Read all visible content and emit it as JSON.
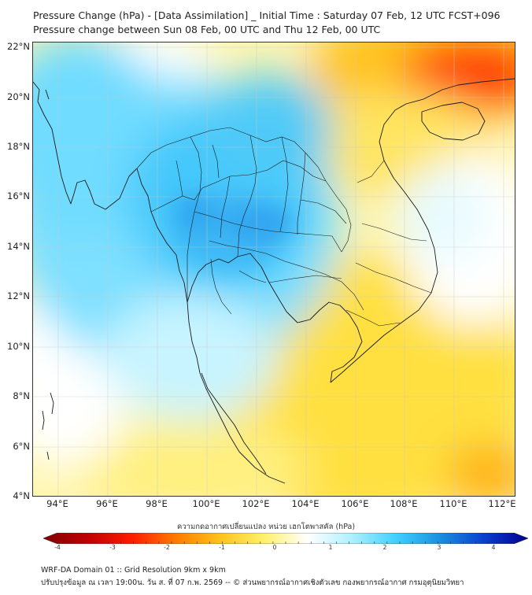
{
  "header": {
    "title_line1": "Pressure Change (hPa) - [Data Assimilation] _ Initial Time : Saturday 07 Feb, 12 UTC FCST+096",
    "title_line2": "Pressure change between Sun 08 Feb, 00 UTC and Thu 12 Feb, 00 UTC"
  },
  "map": {
    "lat_labels": [
      "22°N",
      "20°N",
      "18°N",
      "16°N",
      "14°N",
      "12°N",
      "10°N",
      "8°N",
      "6°N",
      "4°N"
    ],
    "lon_labels": [
      "94°E",
      "96°E",
      "98°E",
      "100°E",
      "102°E",
      "104°E",
      "106°E",
      "108°E",
      "110°E",
      "112°E"
    ],
    "colors": {
      "land_outline": "#1a1a1a",
      "grid": "#bfbfbf",
      "strong_rise": "#1e88e5",
      "rise": "#4fc3f7",
      "neutral": "#ffffff",
      "fall": "#ffe34d",
      "strong_fall": "#e53935"
    }
  },
  "colorbar": {
    "title": "ความกดอากาศเปลี่ยนแปลง หน่วย เฮกโตพาสคัล (hPa)",
    "ticks": [
      "-4",
      "-3",
      "-2",
      "-1",
      "0",
      "1",
      "2",
      "3",
      "4"
    ],
    "min": -4.5,
    "max": 4.5,
    "stops": [
      "#800000",
      "#c00000",
      "#ff1a00",
      "#ff7a00",
      "#ffc21a",
      "#fff06a",
      "#ffffff",
      "#aef0ff",
      "#3fd0ff",
      "#1a8fe0",
      "#0a3fd0",
      "#000090"
    ]
  },
  "footer": {
    "line1": "WRF-DA Domain 01 :: Grid Resolution 9km x 9km",
    "line2": "ปรับปรุงข้อมูล ณ เวลา 19:00น. วัน ส. ที่ 07 ก.พ. 2569 -- © ส่วนพยากรณ์อากาศเชิงตัวเลข กองพยากรณ์อากาศ กรมอุตุนิยมวิทยา"
  }
}
